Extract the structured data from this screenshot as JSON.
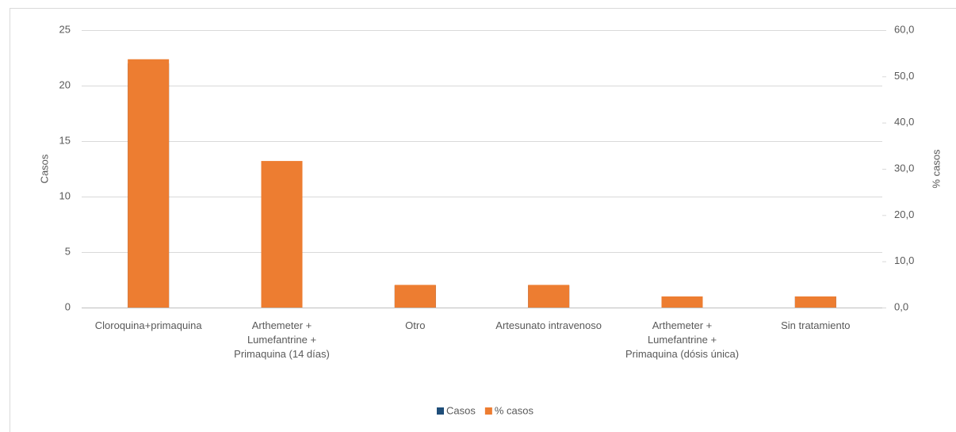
{
  "chart_data": {
    "type": "bar",
    "categories": [
      "Cloroquina+primaquina",
      "Arthemeter + Lumefantrine + Primaquina (14 días)",
      "Otro",
      "Artesunato intravenoso",
      "Arthemeter + Lumefantrine + Primaquina (dósis única)",
      "Sin tratamiento"
    ],
    "series": [
      {
        "name": "Casos",
        "color": "#1f4e79",
        "values": [
          22,
          13,
          2,
          2,
          1,
          1
        ]
      },
      {
        "name": "% casos",
        "color": "#ed7d31",
        "axis": "y2",
        "values": [
          53.7,
          31.7,
          4.9,
          4.9,
          2.4,
          2.4
        ]
      }
    ],
    "ylabel": "Casos",
    "y2label": "% casos",
    "ylim": [
      0,
      25
    ],
    "yticks": [
      0,
      5,
      10,
      15,
      20,
      25
    ],
    "y2lim": [
      0,
      60
    ],
    "y2ticks": [
      {
        "value": 0,
        "label": "0,0"
      },
      {
        "value": 10,
        "label": "10,0"
      },
      {
        "value": 20,
        "label": "20,0"
      },
      {
        "value": 30,
        "label": "30,0"
      },
      {
        "value": 40,
        "label": "40,0"
      },
      {
        "value": 50,
        "label": "50,0"
      },
      {
        "value": 60,
        "label": "60,0"
      }
    ],
    "grid": true,
    "legend": "bottom"
  }
}
